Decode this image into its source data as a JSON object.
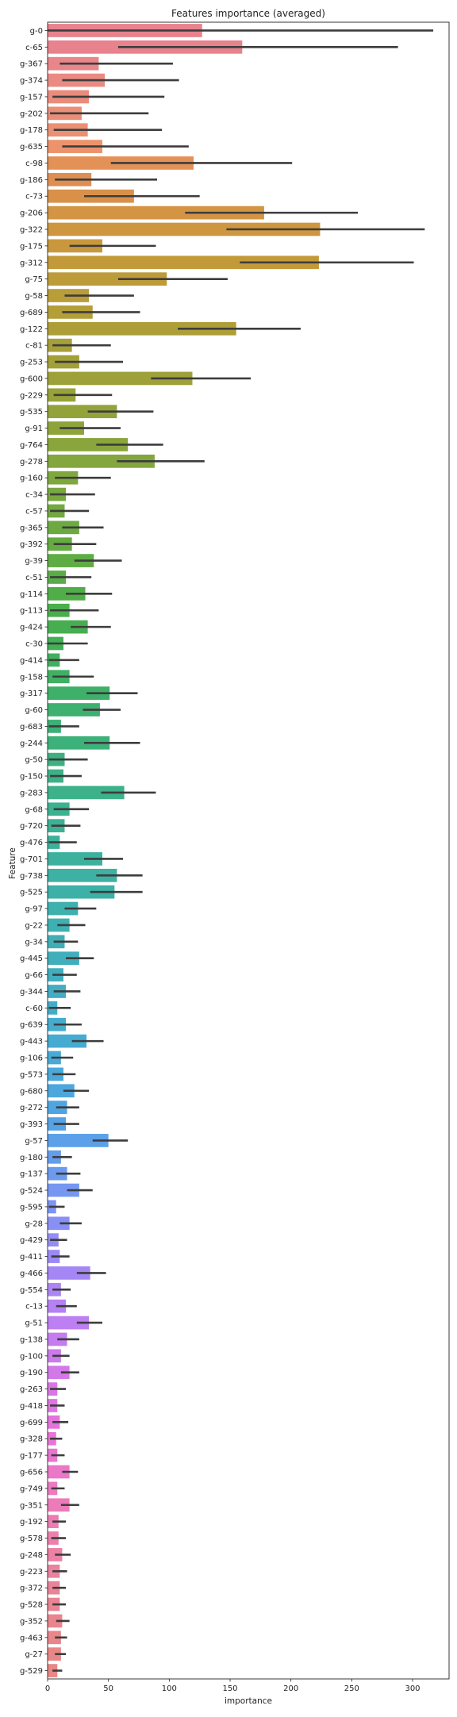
{
  "chart_data": {
    "type": "bar",
    "orientation": "horizontal",
    "title": "Features importance (averaged)",
    "xlabel": "importance",
    "ylabel": "Feature",
    "xlim": [
      0,
      330
    ],
    "xticks": [
      0,
      50,
      100,
      150,
      200,
      250,
      300
    ],
    "grid": false,
    "error_bars": true,
    "bars": [
      {
        "feature": "g-0",
        "value": 127,
        "err_low": 0,
        "err_high": 317,
        "color": "#e8828d"
      },
      {
        "feature": "c-65",
        "value": 160,
        "err_low": 58,
        "err_high": 288,
        "color": "#e8828d"
      },
      {
        "feature": "g-367",
        "value": 42,
        "err_low": 10,
        "err_high": 103,
        "color": "#e8868a"
      },
      {
        "feature": "g-374",
        "value": 47,
        "err_low": 12,
        "err_high": 108,
        "color": "#e98a83"
      },
      {
        "feature": "g-157",
        "value": 34,
        "err_low": 4,
        "err_high": 96,
        "color": "#ea8c7d"
      },
      {
        "feature": "g-202",
        "value": 28,
        "err_low": 2,
        "err_high": 83,
        "color": "#eb8e77"
      },
      {
        "feature": "g-178",
        "value": 33,
        "err_low": 5,
        "err_high": 94,
        "color": "#eb9072"
      },
      {
        "feature": "g-635",
        "value": 45,
        "err_low": 12,
        "err_high": 116,
        "color": "#ec936c"
      },
      {
        "feature": "c-98",
        "value": 120,
        "err_low": 52,
        "err_high": 201,
        "color": "#e49158"
      },
      {
        "feature": "g-186",
        "value": 36,
        "err_low": 6,
        "err_high": 90,
        "color": "#df8e52"
      },
      {
        "feature": "c-73",
        "value": 71,
        "err_low": 30,
        "err_high": 125,
        "color": "#d99149"
      },
      {
        "feature": "g-206",
        "value": 178,
        "err_low": 113,
        "err_high": 255,
        "color": "#d39443"
      },
      {
        "feature": "g-322",
        "value": 224,
        "err_low": 147,
        "err_high": 310,
        "color": "#cd963f"
      },
      {
        "feature": "g-175",
        "value": 45,
        "err_low": 18,
        "err_high": 89,
        "color": "#c9983c"
      },
      {
        "feature": "g-312",
        "value": 223,
        "err_low": 158,
        "err_high": 301,
        "color": "#c39a3a"
      },
      {
        "feature": "g-75",
        "value": 98,
        "err_low": 58,
        "err_high": 148,
        "color": "#be9b39"
      },
      {
        "feature": "g-58",
        "value": 34,
        "err_low": 14,
        "err_high": 71,
        "color": "#b99d38"
      },
      {
        "feature": "g-689",
        "value": 37,
        "err_low": 12,
        "err_high": 76,
        "color": "#b39e38"
      },
      {
        "feature": "g-122",
        "value": 155,
        "err_low": 107,
        "err_high": 208,
        "color": "#ad9e38"
      },
      {
        "feature": "c-81",
        "value": 20,
        "err_low": 4,
        "err_high": 52,
        "color": "#a79f38"
      },
      {
        "feature": "g-253",
        "value": 26,
        "err_low": 6,
        "err_high": 62,
        "color": "#a3a038"
      },
      {
        "feature": "g-600",
        "value": 119,
        "err_low": 85,
        "err_high": 167,
        "color": "#9ea139"
      },
      {
        "feature": "g-229",
        "value": 23,
        "err_low": 5,
        "err_high": 53,
        "color": "#98a239"
      },
      {
        "feature": "g-535",
        "value": 57,
        "err_low": 33,
        "err_high": 87,
        "color": "#93a33a"
      },
      {
        "feature": "g-91",
        "value": 30,
        "err_low": 10,
        "err_high": 60,
        "color": "#8ea43b"
      },
      {
        "feature": "g-764",
        "value": 66,
        "err_low": 40,
        "err_high": 95,
        "color": "#89a53c"
      },
      {
        "feature": "g-278",
        "value": 88,
        "err_low": 57,
        "err_high": 129,
        "color": "#83a63d"
      },
      {
        "feature": "g-160",
        "value": 25,
        "err_low": 6,
        "err_high": 52,
        "color": "#7ea73e"
      },
      {
        "feature": "c-34",
        "value": 15,
        "err_low": 2,
        "err_high": 39,
        "color": "#78a83f"
      },
      {
        "feature": "c-57",
        "value": 14,
        "err_low": 2,
        "err_high": 34,
        "color": "#72a940"
      },
      {
        "feature": "g-365",
        "value": 26,
        "err_low": 12,
        "err_high": 46,
        "color": "#6caa41"
      },
      {
        "feature": "g-392",
        "value": 20,
        "err_low": 5,
        "err_high": 40,
        "color": "#66ab42"
      },
      {
        "feature": "g-39",
        "value": 38,
        "err_low": 22,
        "err_high": 61,
        "color": "#5fac44"
      },
      {
        "feature": "c-51",
        "value": 15,
        "err_low": 2,
        "err_high": 36,
        "color": "#58ad46"
      },
      {
        "feature": "g-114",
        "value": 31,
        "err_low": 15,
        "err_high": 53,
        "color": "#50ad48"
      },
      {
        "feature": "g-113",
        "value": 18,
        "err_low": 2,
        "err_high": 42,
        "color": "#4aae4c"
      },
      {
        "feature": "g-424",
        "value": 33,
        "err_low": 19,
        "err_high": 52,
        "color": "#46ae51"
      },
      {
        "feature": "c-30",
        "value": 13,
        "err_low": 0,
        "err_high": 33,
        "color": "#43af57"
      },
      {
        "feature": "g-414",
        "value": 10,
        "err_low": 1,
        "err_high": 26,
        "color": "#41af5d"
      },
      {
        "feature": "g-158",
        "value": 18,
        "err_low": 4,
        "err_high": 38,
        "color": "#40b063"
      },
      {
        "feature": "g-317",
        "value": 51,
        "err_low": 32,
        "err_high": 74,
        "color": "#3fb069"
      },
      {
        "feature": "g-60",
        "value": 43,
        "err_low": 29,
        "err_high": 60,
        "color": "#3eb06f"
      },
      {
        "feature": "g-683",
        "value": 11,
        "err_low": 1,
        "err_high": 26,
        "color": "#3db075"
      },
      {
        "feature": "g-244",
        "value": 51,
        "err_low": 30,
        "err_high": 76,
        "color": "#3db17a"
      },
      {
        "feature": "g-50",
        "value": 14,
        "err_low": 1,
        "err_high": 33,
        "color": "#3cb180"
      },
      {
        "feature": "g-150",
        "value": 13,
        "err_low": 2,
        "err_high": 28,
        "color": "#3cb185"
      },
      {
        "feature": "g-283",
        "value": 63,
        "err_low": 44,
        "err_high": 89,
        "color": "#3cb18a"
      },
      {
        "feature": "g-68",
        "value": 18,
        "err_low": 5,
        "err_high": 34,
        "color": "#3cb18f"
      },
      {
        "feature": "g-720",
        "value": 14,
        "err_low": 3,
        "err_high": 27,
        "color": "#3cb194"
      },
      {
        "feature": "g-476",
        "value": 10,
        "err_low": 1,
        "err_high": 24,
        "color": "#3cb199"
      },
      {
        "feature": "g-701",
        "value": 45,
        "err_low": 30,
        "err_high": 62,
        "color": "#3cb19e"
      },
      {
        "feature": "g-738",
        "value": 57,
        "err_low": 40,
        "err_high": 78,
        "color": "#3db1a3"
      },
      {
        "feature": "g-525",
        "value": 55,
        "err_low": 35,
        "err_high": 78,
        "color": "#3db0a8"
      },
      {
        "feature": "g-97",
        "value": 25,
        "err_low": 14,
        "err_high": 40,
        "color": "#3eb0ad"
      },
      {
        "feature": "g-22",
        "value": 18,
        "err_low": 8,
        "err_high": 31,
        "color": "#3fb0b2"
      },
      {
        "feature": "g-34",
        "value": 14,
        "err_low": 5,
        "err_high": 25,
        "color": "#3fafb6"
      },
      {
        "feature": "g-445",
        "value": 26,
        "err_low": 15,
        "err_high": 38,
        "color": "#40afbb"
      },
      {
        "feature": "g-66",
        "value": 13,
        "err_low": 4,
        "err_high": 24,
        "color": "#41aebf"
      },
      {
        "feature": "g-344",
        "value": 15,
        "err_low": 5,
        "err_high": 27,
        "color": "#42adc4"
      },
      {
        "feature": "c-60",
        "value": 8,
        "err_low": 1,
        "err_high": 19,
        "color": "#43adc9"
      },
      {
        "feature": "g-639",
        "value": 15,
        "err_low": 5,
        "err_high": 28,
        "color": "#45accd"
      },
      {
        "feature": "g-443",
        "value": 32,
        "err_low": 20,
        "err_high": 46,
        "color": "#46abd1"
      },
      {
        "feature": "g-106",
        "value": 11,
        "err_low": 3,
        "err_high": 21,
        "color": "#48aad6"
      },
      {
        "feature": "g-573",
        "value": 13,
        "err_low": 4,
        "err_high": 23,
        "color": "#4aa8da"
      },
      {
        "feature": "g-680",
        "value": 22,
        "err_low": 13,
        "err_high": 34,
        "color": "#4ca7de"
      },
      {
        "feature": "g-272",
        "value": 16,
        "err_low": 7,
        "err_high": 26,
        "color": "#4fa5e2"
      },
      {
        "feature": "g-393",
        "value": 15,
        "err_low": 5,
        "err_high": 26,
        "color": "#55a3e6"
      },
      {
        "feature": "g-57",
        "value": 50,
        "err_low": 37,
        "err_high": 66,
        "color": "#5ba0e9"
      },
      {
        "feature": "g-180",
        "value": 11,
        "err_low": 4,
        "err_high": 20,
        "color": "#639ded"
      },
      {
        "feature": "g-137",
        "value": 16,
        "err_low": 7,
        "err_high": 27,
        "color": "#6b9aef"
      },
      {
        "feature": "g-524",
        "value": 26,
        "err_low": 16,
        "err_high": 37,
        "color": "#7597f2"
      },
      {
        "feature": "g-595",
        "value": 7,
        "err_low": 1,
        "err_high": 14,
        "color": "#7f93f4"
      },
      {
        "feature": "g-28",
        "value": 18,
        "err_low": 10,
        "err_high": 28,
        "color": "#8990f5"
      },
      {
        "feature": "g-429",
        "value": 9,
        "err_low": 2,
        "err_high": 16,
        "color": "#928df6"
      },
      {
        "feature": "g-411",
        "value": 10,
        "err_low": 3,
        "err_high": 18,
        "color": "#9b8af6"
      },
      {
        "feature": "g-466",
        "value": 35,
        "err_low": 24,
        "err_high": 48,
        "color": "#a487f5"
      },
      {
        "feature": "g-554",
        "value": 11,
        "err_low": 4,
        "err_high": 19,
        "color": "#ad84f4"
      },
      {
        "feature": "c-13",
        "value": 15,
        "err_low": 7,
        "err_high": 24,
        "color": "#b581f3"
      },
      {
        "feature": "g-51",
        "value": 34,
        "err_low": 24,
        "err_high": 45,
        "color": "#bd7ff1"
      },
      {
        "feature": "g-138",
        "value": 16,
        "err_low": 8,
        "err_high": 26,
        "color": "#c47cef"
      },
      {
        "feature": "g-100",
        "value": 11,
        "err_low": 4,
        "err_high": 18,
        "color": "#cb7aec"
      },
      {
        "feature": "g-190",
        "value": 18,
        "err_low": 11,
        "err_high": 26,
        "color": "#d278e9"
      },
      {
        "feature": "g-263",
        "value": 8,
        "err_low": 2,
        "err_high": 15,
        "color": "#d976e5"
      },
      {
        "feature": "g-418",
        "value": 8,
        "err_low": 2,
        "err_high": 14,
        "color": "#df75e1"
      },
      {
        "feature": "g-699",
        "value": 10,
        "err_low": 4,
        "err_high": 17,
        "color": "#e474dc"
      },
      {
        "feature": "g-328",
        "value": 7,
        "err_low": 2,
        "err_high": 12,
        "color": "#e874d6"
      },
      {
        "feature": "g-177",
        "value": 8,
        "err_low": 3,
        "err_high": 14,
        "color": "#ea75cf"
      },
      {
        "feature": "g-656",
        "value": 18,
        "err_low": 12,
        "err_high": 25,
        "color": "#eb77c8"
      },
      {
        "feature": "g-749",
        "value": 8,
        "err_low": 3,
        "err_high": 14,
        "color": "#ec79c1"
      },
      {
        "feature": "g-351",
        "value": 18,
        "err_low": 11,
        "err_high": 26,
        "color": "#ec7bba"
      },
      {
        "feature": "g-192",
        "value": 9,
        "err_low": 4,
        "err_high": 15,
        "color": "#ec7db3"
      },
      {
        "feature": "g-578",
        "value": 9,
        "err_low": 3,
        "err_high": 15,
        "color": "#ec7fac"
      },
      {
        "feature": "g-248",
        "value": 12,
        "err_low": 6,
        "err_high": 19,
        "color": "#ec80a5"
      },
      {
        "feature": "g-223",
        "value": 10,
        "err_low": 4,
        "err_high": 16,
        "color": "#eb829e"
      },
      {
        "feature": "g-372",
        "value": 10,
        "err_low": 4,
        "err_high": 15,
        "color": "#eb8398"
      },
      {
        "feature": "g-528",
        "value": 10,
        "err_low": 4,
        "err_high": 15,
        "color": "#ea8493"
      },
      {
        "feature": "g-352",
        "value": 12,
        "err_low": 7,
        "err_high": 18,
        "color": "#ea858e"
      },
      {
        "feature": "g-463",
        "value": 11,
        "err_low": 6,
        "err_high": 16,
        "color": "#e9868a"
      },
      {
        "feature": "g-27",
        "value": 11,
        "err_low": 6,
        "err_high": 15,
        "color": "#e98787"
      },
      {
        "feature": "g-529",
        "value": 8,
        "err_low": 4,
        "err_high": 12,
        "color": "#e88784"
      }
    ]
  }
}
